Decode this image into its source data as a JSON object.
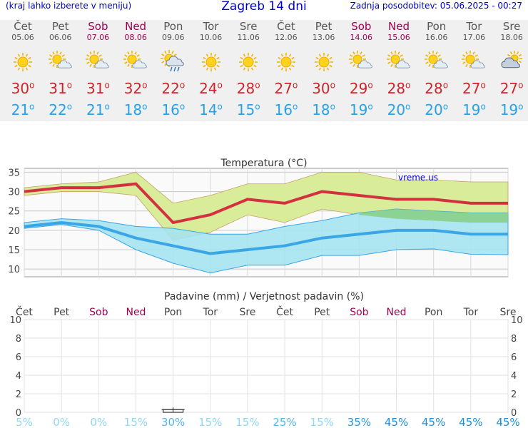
{
  "header": {
    "left": "(kraj lahko izberete v meniju)",
    "title": "Zagreb 14 dni",
    "updated": "Zadnja posodobitev: 05.06.2025 - 00:27"
  },
  "days": [
    {
      "name": "Čet",
      "date": "05.06",
      "weekend": false,
      "icon": "sunny-icon",
      "max": "30",
      "min": "21"
    },
    {
      "name": "Pet",
      "date": "06.06",
      "weekend": false,
      "icon": "partly-cloudy-icon",
      "max": "31",
      "min": "22"
    },
    {
      "name": "Sob",
      "date": "07.06",
      "weekend": true,
      "icon": "partly-cloudy-icon",
      "max": "31",
      "min": "21"
    },
    {
      "name": "Ned",
      "date": "08.06",
      "weekend": true,
      "icon": "partly-cloudy-icon",
      "max": "32",
      "min": "18"
    },
    {
      "name": "Pon",
      "date": "09.06",
      "weekend": false,
      "icon": "rain-showers-icon",
      "max": "22",
      "min": "16"
    },
    {
      "name": "Tor",
      "date": "10.06",
      "weekend": false,
      "icon": "sunny-icon",
      "max": "24",
      "min": "14"
    },
    {
      "name": "Sre",
      "date": "11.06",
      "weekend": false,
      "icon": "sunny-icon",
      "max": "28",
      "min": "15"
    },
    {
      "name": "Čet",
      "date": "12.06",
      "weekend": false,
      "icon": "sunny-icon",
      "max": "27",
      "min": "16"
    },
    {
      "name": "Pet",
      "date": "13.06",
      "weekend": false,
      "icon": "sunny-icon",
      "max": "30",
      "min": "18"
    },
    {
      "name": "Sob",
      "date": "14.06",
      "weekend": true,
      "icon": "partly-cloudy-icon",
      "max": "29",
      "min": "19"
    },
    {
      "name": "Ned",
      "date": "15.06",
      "weekend": true,
      "icon": "partly-cloudy-icon",
      "max": "28",
      "min": "20"
    },
    {
      "name": "Pon",
      "date": "16.06",
      "weekend": false,
      "icon": "partly-cloudy-icon",
      "max": "28",
      "min": "20"
    },
    {
      "name": "Tor",
      "date": "17.06",
      "weekend": false,
      "icon": "partly-cloudy-icon",
      "max": "27",
      "min": "19"
    },
    {
      "name": "Sre",
      "date": "18.06",
      "weekend": false,
      "icon": "cloudy-icon",
      "max": "27",
      "min": "19"
    }
  ],
  "colors": {
    "max_line": "#d33040",
    "min_line": "#3aa6e6",
    "max_band": "#d9ec9a",
    "min_band": "#a5e3f0",
    "overlap": "#86cf86",
    "weekend": "#a00050",
    "prob_low": "#8fd8f0",
    "prob_high": "#1e8fd6"
  },
  "chart_data": [
    {
      "type": "line",
      "title": "Temperatura (°C)",
      "watermark": "vreme.us",
      "ylim": [
        8,
        36
      ],
      "yticks": [
        10,
        15,
        20,
        25,
        30,
        35
      ],
      "grid": true,
      "series": [
        {
          "name": "max",
          "values": [
            30,
            31,
            31,
            32,
            22,
            24,
            28,
            27,
            30,
            29,
            28,
            28,
            27,
            27
          ]
        },
        {
          "name": "max_upper",
          "values": [
            31,
            32,
            32.5,
            35,
            27,
            29,
            32,
            32,
            35,
            35,
            33,
            33,
            32.5,
            32.5
          ]
        },
        {
          "name": "max_lower",
          "values": [
            29,
            30,
            30,
            29,
            17.5,
            19.5,
            24,
            22,
            25.5,
            24,
            23,
            22.5,
            22,
            22
          ]
        },
        {
          "name": "min",
          "values": [
            21,
            22,
            21,
            18,
            16,
            14,
            15,
            16,
            18,
            19,
            20,
            20,
            19,
            19
          ]
        },
        {
          "name": "min_upper",
          "values": [
            22,
            23,
            22.5,
            21,
            20.5,
            19,
            19,
            21,
            22.5,
            24.5,
            25.5,
            25,
            24.5,
            24.5
          ]
        },
        {
          "name": "min_lower",
          "values": [
            20.5,
            21.5,
            20,
            15,
            11.5,
            9,
            11,
            11,
            13.5,
            13.5,
            15,
            15.2,
            13.8,
            13.7
          ]
        }
      ]
    },
    {
      "type": "bar",
      "title": "Padavine (mm) / Verjetnost padavin (%)",
      "categories": [
        "Čet",
        "Pet",
        "Sob",
        "Ned",
        "Pon",
        "Tor",
        "Sre",
        "Čet",
        "Pet",
        "Sob",
        "Ned",
        "Pon",
        "Tor",
        "Sre"
      ],
      "weekend": [
        false,
        false,
        true,
        true,
        false,
        false,
        false,
        false,
        false,
        true,
        true,
        false,
        false,
        false
      ],
      "ylim": [
        0,
        10
      ],
      "yticks": [
        0,
        2,
        4,
        6,
        8,
        10
      ],
      "precip_mm": [
        0,
        0,
        0,
        0,
        0.3,
        0,
        0,
        0,
        0,
        0,
        0,
        0,
        0,
        0
      ],
      "probability": [
        "5%",
        "0%",
        "0%",
        "15%",
        "30%",
        "15%",
        "15%",
        "25%",
        "15%",
        "35%",
        "45%",
        "45%",
        "45%",
        "45%"
      ]
    }
  ]
}
